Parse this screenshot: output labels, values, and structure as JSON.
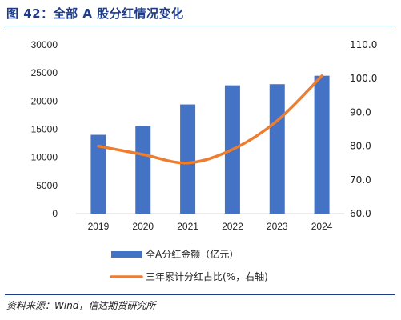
{
  "title": "图 42：全部 A 股分红情况变化",
  "source": "资料来源：Wind，信达期货研究所",
  "chart_data": {
    "type": "bar",
    "categories": [
      "2019",
      "2020",
      "2021",
      "2022",
      "2023",
      "2024"
    ],
    "series": [
      {
        "name": "全A分红金额（亿元）",
        "type": "bar",
        "axis": "left",
        "color": "#4472c4",
        "values": [
          14000,
          15600,
          19400,
          22800,
          23000,
          24500
        ]
      },
      {
        "name": "三年累计分红占比(%，右轴)",
        "type": "line",
        "axis": "right",
        "color": "#ed7d31",
        "values": [
          80.0,
          77.5,
          75.0,
          79.0,
          87.5,
          100.8
        ]
      }
    ],
    "y_left": {
      "min": 0,
      "max": 30000,
      "ticks": [
        "0",
        "5000",
        "10000",
        "15000",
        "20000",
        "25000",
        "30000"
      ]
    },
    "y_right": {
      "min": 60,
      "max": 110,
      "ticks": [
        "60.0",
        "70.0",
        "80.0",
        "90.0",
        "100.0",
        "110.0"
      ]
    },
    "legend_position": "bottom",
    "grid": false
  }
}
